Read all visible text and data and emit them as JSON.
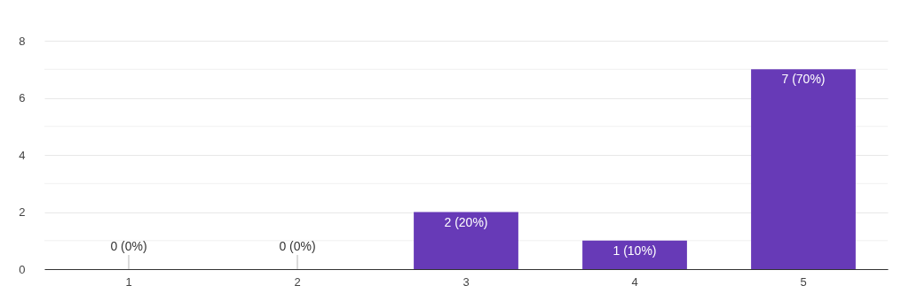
{
  "chart_data": {
    "type": "bar",
    "categories": [
      "1",
      "2",
      "3",
      "4",
      "5"
    ],
    "values": [
      0,
      0,
      2,
      1,
      7
    ],
    "value_labels": [
      "0 (0%)",
      "0 (0%)",
      "2 (20%)",
      "1 (10%)",
      "7 (70%)"
    ],
    "color": "#673ab7",
    "ylim": [
      0,
      8
    ],
    "yticks": [
      0,
      {
        "value": 1,
        "label": null
      },
      2,
      {
        "value": 3,
        "label": null
      },
      4,
      {
        "value": 5,
        "label": null
      },
      6,
      {
        "value": 7,
        "label": null
      },
      8
    ],
    "grid": "y"
  }
}
